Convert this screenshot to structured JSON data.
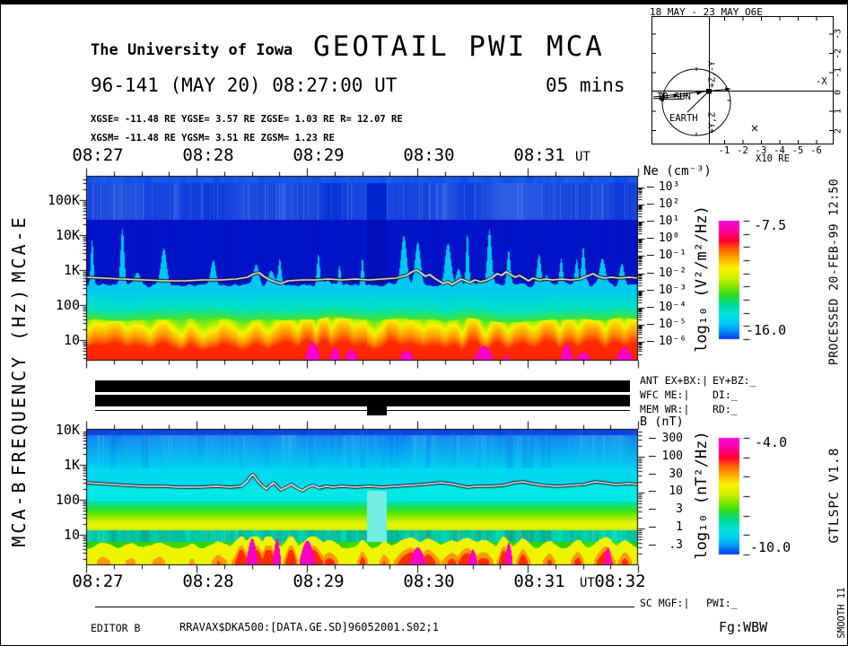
{
  "header": {
    "institution": "The University of Iowa",
    "title": "GEOTAIL PWI MCA",
    "date_line": "96-141 (MAY 20) 08:27:00 UT",
    "duration": "05 mins",
    "coords_line1": "XGSE= -11.48 RE   YGSE=   3.57 RE   ZGSE=   1.03 RE   R= 12.07 RE",
    "coords_line2": "XGSM= -11.48 RE   YGSM=   3.51 RE   ZGSM=   1.23 RE"
  },
  "orbit_inset": {
    "title": "18 MAY - 23 MAY  O6E",
    "axis_top_label": "+Z,-Y",
    "axis_right_label": "-X",
    "axis_bottom_label": "+Y,Z",
    "to_sun_label": "TO SUN",
    "earth_label": "EARTH",
    "x_ticks": [
      "-1",
      "-2",
      "-3",
      "-4",
      "-5",
      "-6"
    ],
    "y_ticks": [
      "-3",
      "-2",
      "-1",
      "0",
      "1",
      "2"
    ],
    "scale_label": "X10 RE"
  },
  "time_axis": {
    "top_labels": [
      "08:27",
      "08:28",
      "08:29",
      "08:30",
      "08:31"
    ],
    "top_suffix": "UT",
    "bottom_labels": [
      "08:27",
      "08:28",
      "08:29",
      "08:30",
      "08:31"
    ],
    "bottom_suffix": "UT",
    "bottom_end_label": "08:32"
  },
  "left_axis": {
    "ylabel": "FREQUENCY (Hz)",
    "panel_e_label": "MCA-E",
    "panel_b_label": "MCA-B",
    "e_ticks": [
      "100K",
      "10K",
      "1K",
      "100",
      "10"
    ],
    "b_ticks": [
      "10K",
      "1K",
      "100",
      "10"
    ]
  },
  "ne_scale": {
    "title": "Ne (cm⁻³)",
    "dash": "–",
    "ticks": [
      "10³",
      "10²",
      "10¹",
      "10⁰",
      "10⁻¹",
      "10⁻²",
      "10⁻³",
      "10⁻⁴",
      "10⁻⁵",
      "10⁻⁶"
    ]
  },
  "b_scale": {
    "title": "B (nT)",
    "dash": "–",
    "ticks": [
      "300",
      "100",
      "30",
      "10",
      "3",
      "1",
      ".3"
    ]
  },
  "colorbar_e": {
    "label": "log₁₀ (V²/m²/Hz)",
    "max": "-7.5",
    "min": "-16.0"
  },
  "colorbar_b": {
    "label": "log₁₀ (nT²/Hz)",
    "max": "-4.0",
    "min": "-10.0"
  },
  "status": {
    "ant": "ANT EX+BX:|",
    "ant2": "EY+BZ:_",
    "wfc": "WFC ME:|",
    "wfc2": "DI:_",
    "mem": "MEM WR:|",
    "mem2": "RD:_",
    "sc": "SC MGF:|",
    "sc2": "PWI:_"
  },
  "footer": {
    "editor": "EDITOR B",
    "file": "RRAVAX$DKA500:[DATA.GE.SD]96052001.S02;1",
    "fg": "Fg:WBW"
  },
  "sidebar": {
    "processed": "PROCESSED 20-FEB-99  12:50",
    "version": "GTLSPC   V1.8",
    "smooth": "SMOOTH 11"
  },
  "chart_data": [
    {
      "type": "heatmap",
      "name": "MCA-E electric field spectrogram",
      "xlabel": "UT",
      "x_start": "08:27:00",
      "x_end": "08:32:00",
      "x_tick_interval_s": 60,
      "ylabel": "FREQUENCY (Hz)",
      "yscale": "log",
      "ylim_hz": [
        3,
        450000
      ],
      "y_tick_labels": [
        "100K",
        "10K",
        "1K",
        "100",
        "10"
      ],
      "z_label": "log10 (V2/m2/Hz)",
      "z_max": -7.5,
      "z_min": -16.0,
      "right_axis_label": "Ne (cm-3)",
      "right_axis_ticks": [
        1000,
        100,
        10,
        1,
        0.1,
        0.01,
        0.001,
        0.0001,
        1e-05,
        1e-06
      ],
      "features": "Blue background above 1 kHz with impulsive broadband cyan bursts to ~10 kHz; intense yellow-red emission below ~100 Hz saturating (magenta) near 08:29 and after 08:30:30; white overlay trace near 700-900 Hz; data gap (memory write) ~08:29:33-08:29:43.",
      "palette": [
        [
          0,
          "#FA00E6"
        ],
        [
          0.1,
          "#FF0090"
        ],
        [
          0.17,
          "#FF0030"
        ],
        [
          0.24,
          "#FF6000"
        ],
        [
          0.32,
          "#FFAA00"
        ],
        [
          0.4,
          "#FFF200"
        ],
        [
          0.48,
          "#D4F000"
        ],
        [
          0.56,
          "#7FE600"
        ],
        [
          0.63,
          "#2ADC20"
        ],
        [
          0.7,
          "#00DA90"
        ],
        [
          0.78,
          "#00E3D8"
        ],
        [
          0.86,
          "#00CFF4"
        ],
        [
          0.93,
          "#0492F8"
        ],
        [
          1,
          "#0435EE"
        ]
      ],
      "gap": [
        0.509,
        0.543
      ],
      "bursts": [
        [
          0.02,
          0.55
        ],
        [
          0.05,
          0.7
        ],
        [
          0.09,
          0.5
        ],
        [
          0.14,
          0.65
        ],
        [
          0.19,
          0.5
        ],
        [
          0.25,
          0.6
        ],
        [
          0.31,
          0.55
        ],
        [
          0.36,
          0.8
        ],
        [
          0.4,
          0.95
        ],
        [
          0.43,
          1.0
        ],
        [
          0.465,
          0.9
        ],
        [
          0.5,
          0.6
        ],
        [
          0.55,
          0.85
        ],
        [
          0.585,
          0.65
        ],
        [
          0.63,
          0.55
        ],
        [
          0.665,
          0.5
        ],
        [
          0.7,
          0.95
        ],
        [
          0.745,
          0.7
        ],
        [
          0.79,
          0.6
        ],
        [
          0.835,
          0.9
        ],
        [
          0.875,
          0.65
        ],
        [
          0.915,
          0.95
        ],
        [
          0.96,
          0.85
        ],
        [
          0.995,
          0.75
        ]
      ],
      "magenta_bursts": [
        [
          0.41,
          1.0
        ],
        [
          0.45,
          0.85
        ],
        [
          0.48,
          0.8
        ],
        [
          0.58,
          0.75
        ],
        [
          0.72,
          0.9
        ],
        [
          0.76,
          0.6
        ],
        [
          0.87,
          0.95
        ],
        [
          0.9,
          0.7
        ],
        [
          0.975,
          0.85
        ]
      ],
      "spikes": [
        [
          0.01,
          50
        ],
        [
          0.065,
          62
        ],
        [
          0.14,
          40
        ],
        [
          0.23,
          28
        ],
        [
          0.35,
          30
        ],
        [
          0.42,
          36
        ],
        [
          0.5,
          30
        ],
        [
          0.575,
          55
        ],
        [
          0.6,
          48
        ],
        [
          0.655,
          45
        ],
        [
          0.69,
          58
        ],
        [
          0.73,
          62
        ],
        [
          0.765,
          40
        ],
        [
          0.82,
          35
        ],
        [
          0.86,
          30
        ],
        [
          0.9,
          42
        ],
        [
          0.935,
          30
        ],
        [
          0.97,
          25
        ]
      ],
      "trace": [
        [
          0,
          113
        ],
        [
          20,
          114
        ],
        [
          40,
          115
        ],
        [
          65,
          116
        ],
        [
          90,
          117
        ],
        [
          110,
          117
        ],
        [
          130,
          116
        ],
        [
          150,
          116
        ],
        [
          167,
          115
        ],
        [
          180,
          113
        ],
        [
          187,
          109
        ],
        [
          193,
          108
        ],
        [
          198,
          112
        ],
        [
          203,
          115
        ],
        [
          210,
          118
        ],
        [
          217,
          120
        ],
        [
          225,
          117
        ],
        [
          240,
          116
        ],
        [
          255,
          116
        ],
        [
          270,
          115
        ],
        [
          285,
          116
        ],
        [
          300,
          115
        ],
        [
          315,
          116
        ],
        [
          330,
          115
        ],
        [
          345,
          114
        ],
        [
          357,
          111
        ],
        [
          363,
          107
        ],
        [
          368,
          105
        ],
        [
          373,
          108
        ],
        [
          378,
          112
        ],
        [
          383,
          110
        ],
        [
          388,
          114
        ],
        [
          393,
          117
        ],
        [
          398,
          120
        ],
        [
          403,
          118
        ],
        [
          408,
          121
        ],
        [
          413,
          118
        ],
        [
          418,
          115
        ],
        [
          423,
          117
        ],
        [
          428,
          119
        ],
        [
          433,
          116
        ],
        [
          440,
          118
        ],
        [
          447,
          116
        ],
        [
          453,
          113
        ],
        [
          458,
          109
        ],
        [
          463,
          111
        ],
        [
          468,
          107
        ],
        [
          473,
          110
        ],
        [
          478,
          113
        ],
        [
          483,
          111
        ],
        [
          488,
          114
        ],
        [
          493,
          117
        ],
        [
          498,
          114
        ],
        [
          505,
          116
        ],
        [
          513,
          115
        ],
        [
          520,
          116
        ],
        [
          530,
          115
        ],
        [
          540,
          116
        ],
        [
          550,
          115
        ],
        [
          560,
          111
        ],
        [
          565,
          109
        ],
        [
          570,
          112
        ],
        [
          577,
          114
        ],
        [
          585,
          113
        ],
        [
          595,
          114
        ],
        [
          605,
          113
        ],
        [
          615,
          114
        ]
      ]
    },
    {
      "type": "heatmap",
      "name": "MCA-B magnetic field spectrogram",
      "xlabel": "UT",
      "x_start": "08:27:00",
      "x_end": "08:32:00",
      "x_tick_interval_s": 60,
      "ylabel": "FREQUENCY (Hz)",
      "yscale": "log",
      "ylim_hz": [
        1.5,
        20000
      ],
      "y_tick_labels": [
        "10K",
        "1K",
        "100",
        "10"
      ],
      "z_label": "log10 (nT2/Hz)",
      "z_max": -4.0,
      "z_min": -10.0,
      "right_axis_label": "B (nT)",
      "right_axis_ticks": [
        300,
        100,
        30,
        10,
        3,
        1,
        0.3
      ],
      "features": "Cyan background above ~300 Hz; banded green/yellow emission 20-100 Hz; strongest bursts (magenta) below 10 Hz near 08:28:20-08:29:20, 08:30:00 and 08:31:00; white overlay trace near 300-700 Hz; clean cyan column marks memory-write gap ~08:29:33-08:29:43.",
      "gap": [
        0.509,
        0.543
      ],
      "bursts": [
        [
          0.03,
          0.5
        ],
        [
          0.08,
          0.4
        ],
        [
          0.13,
          0.45
        ],
        [
          0.19,
          0.4
        ],
        [
          0.24,
          0.55
        ],
        [
          0.28,
          0.9
        ],
        [
          0.305,
          1.0
        ],
        [
          0.33,
          1.0
        ],
        [
          0.37,
          0.95
        ],
        [
          0.41,
          0.9
        ],
        [
          0.44,
          0.65
        ],
        [
          0.5,
          0.6
        ],
        [
          0.54,
          0.5
        ],
        [
          0.585,
          0.85
        ],
        [
          0.62,
          0.7
        ],
        [
          0.66,
          0.6
        ],
        [
          0.69,
          0.8
        ],
        [
          0.72,
          0.65
        ],
        [
          0.755,
          0.9
        ],
        [
          0.79,
          0.7
        ],
        [
          0.84,
          0.55
        ],
        [
          0.89,
          0.65
        ],
        [
          0.94,
          0.9
        ],
        [
          0.975,
          0.65
        ]
      ],
      "magenta_bursts": [
        [
          0.055,
          0.5
        ],
        [
          0.3,
          1.0
        ],
        [
          0.345,
          1.0
        ],
        [
          0.4,
          0.95
        ],
        [
          0.6,
          0.8
        ],
        [
          0.7,
          0.75
        ],
        [
          0.765,
          0.9
        ],
        [
          0.945,
          0.8
        ]
      ],
      "trace": [
        [
          0,
          60
        ],
        [
          15,
          61
        ],
        [
          30,
          62
        ],
        [
          45,
          63
        ],
        [
          65,
          64
        ],
        [
          85,
          64
        ],
        [
          105,
          65
        ],
        [
          125,
          65
        ],
        [
          145,
          64
        ],
        [
          160,
          65
        ],
        [
          173,
          64
        ],
        [
          179,
          59
        ],
        [
          183,
          53
        ],
        [
          186,
          51
        ],
        [
          189,
          55
        ],
        [
          193,
          60
        ],
        [
          197,
          64
        ],
        [
          201,
          67
        ],
        [
          205,
          63
        ],
        [
          209,
          60
        ],
        [
          213,
          64
        ],
        [
          217,
          68
        ],
        [
          223,
          65
        ],
        [
          229,
          62
        ],
        [
          235,
          66
        ],
        [
          241,
          69
        ],
        [
          247,
          65
        ],
        [
          253,
          63
        ],
        [
          260,
          66
        ],
        [
          267,
          64
        ],
        [
          275,
          65
        ],
        [
          285,
          64
        ],
        [
          300,
          65
        ],
        [
          315,
          64
        ],
        [
          330,
          65
        ],
        [
          345,
          64
        ],
        [
          360,
          63
        ],
        [
          375,
          62
        ],
        [
          385,
          61
        ],
        [
          395,
          60
        ],
        [
          405,
          61
        ],
        [
          415,
          63
        ],
        [
          425,
          65
        ],
        [
          435,
          64
        ],
        [
          450,
          64
        ],
        [
          465,
          63
        ],
        [
          477,
          60
        ],
        [
          487,
          59
        ],
        [
          497,
          61
        ],
        [
          510,
          63
        ],
        [
          525,
          64
        ],
        [
          540,
          63
        ],
        [
          555,
          62
        ],
        [
          567,
          59
        ],
        [
          577,
          60
        ],
        [
          590,
          62
        ],
        [
          605,
          61
        ],
        [
          615,
          62
        ]
      ]
    }
  ]
}
